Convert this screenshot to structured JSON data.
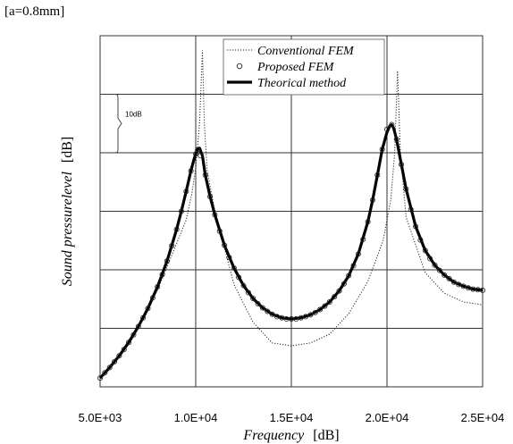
{
  "chart_data": {
    "type": "line",
    "title": "[a=0.8mm]",
    "xlabel": "Frequency",
    "xlabel_unit": "[dB]",
    "ylabel": "Sound pressurelevel",
    "ylabel_unit": "[dB]",
    "xlim": [
      5000,
      25000
    ],
    "ylim": [
      0,
      60
    ],
    "x_tick_values": [
      5000,
      10000,
      15000,
      20000,
      25000
    ],
    "x_tick_labels": [
      "5.0E+03",
      "1.0E+04",
      "1.5E+04",
      "2.0E+04",
      "2.5E+04"
    ],
    "y_grid_values": [
      0,
      10,
      20,
      30,
      40,
      50,
      60
    ],
    "grid": true,
    "legend_position": "top-right",
    "scale_bar": {
      "label": "10dB",
      "from": 40,
      "to": 50
    },
    "series": [
      {
        "name": "Conventional FEM",
        "style": "dotted",
        "x": [
          5000,
          6000,
          7000,
          8000,
          9000,
          9500,
          9800,
          10000,
          10200,
          10350,
          10450,
          10600,
          11000,
          12000,
          13000,
          14000,
          15000,
          16000,
          17000,
          18000,
          19000,
          19800,
          20200,
          20400,
          20550,
          20700,
          21000,
          22000,
          23000,
          24000,
          25000
        ],
        "y": [
          1.5,
          5.5,
          10.5,
          16.5,
          24.5,
          28.5,
          33,
          37.5,
          45,
          57.5,
          45,
          37,
          30,
          17.5,
          11,
          7.5,
          7,
          7.5,
          9,
          12.5,
          18,
          25,
          32,
          40,
          54,
          40,
          29,
          19.5,
          16,
          14.5,
          14
        ]
      },
      {
        "name": "Proposed FEM",
        "style": "markers",
        "x": [
          5000,
          5250,
          5500,
          5750,
          6000,
          6250,
          6500,
          6750,
          7000,
          7250,
          7500,
          7750,
          8000,
          8250,
          8500,
          8750,
          9000,
          9250,
          9500,
          9750,
          10000,
          10100,
          10250,
          10500,
          10750,
          11000,
          11250,
          11500,
          11750,
          12000,
          12250,
          12500,
          12750,
          13000,
          13250,
          13500,
          13750,
          14000,
          14250,
          14500,
          14750,
          15000,
          15250,
          15500,
          15750,
          16000,
          16250,
          16500,
          16750,
          17000,
          17250,
          17500,
          17750,
          18000,
          18250,
          18500,
          18750,
          19000,
          19250,
          19500,
          19750,
          20000,
          20250,
          20500,
          20750,
          21000,
          21250,
          21500,
          21750,
          22000,
          22250,
          22500,
          22750,
          23000,
          23250,
          23500,
          23750,
          24000,
          24250,
          24500,
          24750,
          25000
        ],
        "y": [
          1.5,
          2.4,
          3.3,
          4.3,
          5.3,
          6.4,
          7.6,
          8.9,
          10.3,
          11.8,
          13.4,
          15.2,
          17.1,
          19.2,
          21.5,
          24.1,
          26.9,
          30,
          33.4,
          36.9,
          39.8,
          40.5,
          39.5,
          36.2,
          32.5,
          29.4,
          26.6,
          24.2,
          22.1,
          20.3,
          18.7,
          17.3,
          16.1,
          15.1,
          14.2,
          13.5,
          12.9,
          12.4,
          12,
          11.8,
          11.6,
          11.6,
          11.6,
          11.8,
          12,
          12.3,
          12.7,
          13.2,
          13.8,
          14.5,
          15.4,
          16.4,
          17.6,
          19,
          20.7,
          22.7,
          25.2,
          28.2,
          31.9,
          36.2,
          40.6,
          44,
          44.8,
          42.3,
          38,
          33.8,
          30.3,
          27.4,
          25.1,
          23.3,
          21.9,
          20.8,
          19.9,
          19.1,
          18.5,
          17.9,
          17.5,
          17.2,
          16.9,
          16.7,
          16.6,
          16.5
        ]
      },
      {
        "name": "Theorical method",
        "style": "solid",
        "x": [
          5000,
          5500,
          6000,
          6500,
          7000,
          7500,
          8000,
          8500,
          9000,
          9250,
          9500,
          9750,
          9900,
          10000,
          10100,
          10200,
          10350,
          10500,
          10750,
          11000,
          11500,
          12000,
          12500,
          13000,
          13500,
          14000,
          14500,
          15000,
          15500,
          16000,
          16500,
          17000,
          17500,
          18000,
          18500,
          19000,
          19250,
          19500,
          19750,
          20000,
          20150,
          20250,
          20350,
          20500,
          20750,
          21000,
          21500,
          22000,
          22500,
          23000,
          23500,
          24000,
          24500,
          25000
        ],
        "y": [
          1.5,
          3.3,
          5.3,
          7.6,
          10.3,
          13.4,
          17.1,
          21.5,
          26.9,
          30,
          33.4,
          36.9,
          38.8,
          39.8,
          40.6,
          40.8,
          39.5,
          36.2,
          32.5,
          29.4,
          24.2,
          20.3,
          17.3,
          15.1,
          13.5,
          12.4,
          11.8,
          11.6,
          11.8,
          12.3,
          13.2,
          14.5,
          16.4,
          19,
          22.7,
          28.2,
          31.9,
          36.2,
          40.6,
          43.5,
          44.6,
          44.8,
          44.2,
          42.3,
          38,
          33.8,
          27.4,
          23.3,
          20.8,
          19.1,
          17.9,
          17.2,
          16.7,
          16.5
        ]
      }
    ]
  }
}
